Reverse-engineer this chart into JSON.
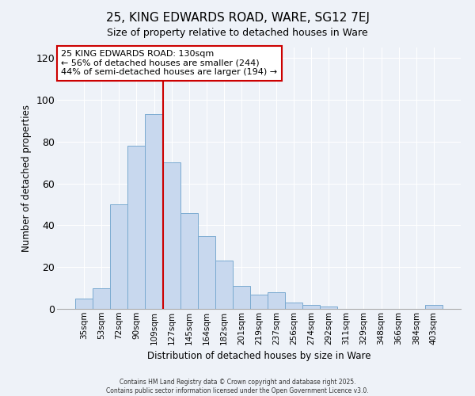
{
  "title": "25, KING EDWARDS ROAD, WARE, SG12 7EJ",
  "subtitle": "Size of property relative to detached houses in Ware",
  "xlabel": "Distribution of detached houses by size in Ware",
  "ylabel": "Number of detached properties",
  "bar_labels": [
    "35sqm",
    "53sqm",
    "72sqm",
    "90sqm",
    "109sqm",
    "127sqm",
    "145sqm",
    "164sqm",
    "182sqm",
    "201sqm",
    "219sqm",
    "237sqm",
    "256sqm",
    "274sqm",
    "292sqm",
    "311sqm",
    "329sqm",
    "348sqm",
    "366sqm",
    "384sqm",
    "403sqm"
  ],
  "bar_values": [
    5,
    10,
    50,
    78,
    93,
    70,
    46,
    35,
    23,
    11,
    7,
    8,
    3,
    2,
    1,
    0,
    0,
    0,
    0,
    0,
    2
  ],
  "bar_color": "#c8d8ee",
  "bar_edge_color": "#7aaad0",
  "vline_x_index": 5,
  "vline_color": "#cc0000",
  "ylim": [
    0,
    125
  ],
  "yticks": [
    0,
    20,
    40,
    60,
    80,
    100,
    120
  ],
  "annotation_title": "25 KING EDWARDS ROAD: 130sqm",
  "annotation_line1": "← 56% of detached houses are smaller (244)",
  "annotation_line2": "44% of semi-detached houses are larger (194) →",
  "annotation_box_facecolor": "#ffffff",
  "annotation_box_edgecolor": "#cc0000",
  "footnote1": "Contains HM Land Registry data © Crown copyright and database right 2025.",
  "footnote2": "Contains public sector information licensed under the Open Government Licence v3.0.",
  "background_color": "#eef2f8",
  "grid_color": "#ffffff",
  "spine_color": "#aaaaaa"
}
